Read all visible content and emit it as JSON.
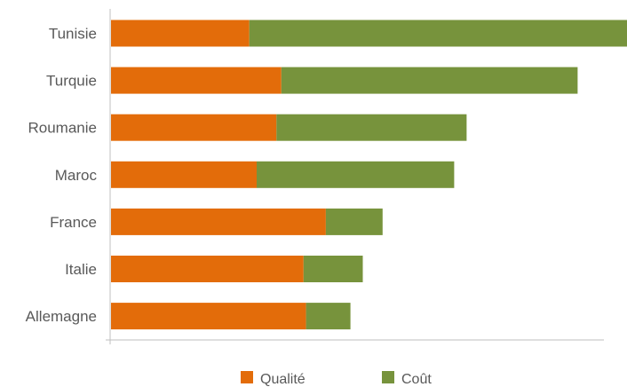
{
  "chart_data": {
    "type": "bar",
    "orientation": "horizontal",
    "stacked": true,
    "categories": [
      "Tunisie",
      "Turquie",
      "Roumanie",
      "Maroc",
      "France",
      "Italie",
      "Allemagne"
    ],
    "series": [
      {
        "name": "Qualité",
        "color": "#e36c0a",
        "values": [
          28,
          34.5,
          33.5,
          29.5,
          43.5,
          39,
          39.5
        ]
      },
      {
        "name": "Coût",
        "color": "#77933c",
        "values": [
          76.5,
          60,
          38.5,
          40,
          11.5,
          12,
          9
        ]
      }
    ],
    "xlim": [
      0,
      100
    ],
    "grid": false,
    "legend_position": "bottom"
  }
}
